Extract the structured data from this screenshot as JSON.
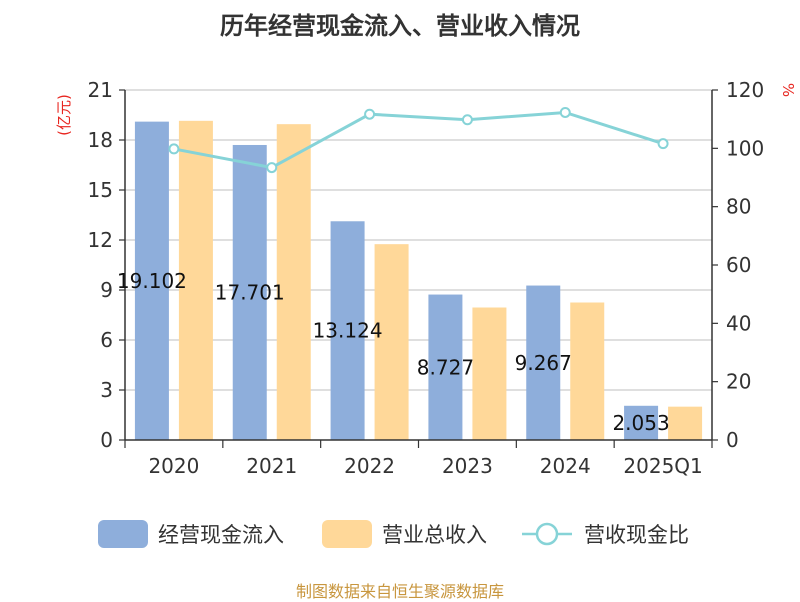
{
  "chart_data": {
    "type": "bar",
    "title": "历年经营现金流入、营业收入情况",
    "categories": [
      "2020",
      "2021",
      "2022",
      "2023",
      "2024",
      "2025Q1"
    ],
    "left_axis": {
      "unit": "(亿元)",
      "ylim": [
        0,
        21
      ],
      "ticks": [
        "0",
        "3",
        "6",
        "9",
        "12",
        "15",
        "18",
        "21"
      ]
    },
    "right_axis": {
      "unit": "%",
      "ylim": [
        0,
        120
      ],
      "ticks": [
        "0",
        "20",
        "40",
        "60",
        "80",
        "100",
        "120"
      ]
    },
    "series": [
      {
        "name": "经营现金流入",
        "type": "bar",
        "axis": "left",
        "color": "#8eaedb",
        "values": [
          19.102,
          17.701,
          13.124,
          8.727,
          9.267,
          2.053
        ],
        "labels": [
          "19.102",
          "17.701",
          "13.124",
          "8.727",
          "9.267",
          "2.053"
        ]
      },
      {
        "name": "营业总收入",
        "type": "bar",
        "axis": "left",
        "color": "#ffd899",
        "values": [
          19.15,
          18.95,
          11.75,
          7.95,
          8.25,
          2.0
        ]
      },
      {
        "name": "营收现金比",
        "type": "line",
        "axis": "right",
        "color": "#86d3d7",
        "values": [
          99.8,
          93.4,
          111.7,
          109.8,
          112.3,
          101.6
        ]
      }
    ],
    "grid": true,
    "legend_position": "bottom"
  },
  "source_note": "制图数据来自恒生聚源数据库"
}
